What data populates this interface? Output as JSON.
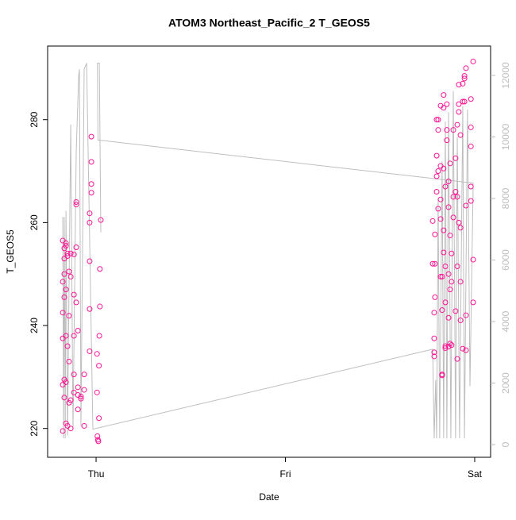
{
  "chart_data": {
    "type": "scatter",
    "title": "ATOM3 Northeast_Pacific_2 T_GEOS5",
    "xlabel": "Date",
    "ylabel": "T_GEOS5",
    "xlim": [
      -0.256,
      2.084
    ],
    "xticks": [
      {
        "value": 0,
        "label": "Thu"
      },
      {
        "value": 1,
        "label": "Fri"
      },
      {
        "value": 2,
        "label": "Sat"
      }
    ],
    "ylim": [
      214.4,
      294.3
    ],
    "yticks": [
      220,
      240,
      260,
      280
    ],
    "y2lim": [
      -413,
      12955
    ],
    "y2ticks": [
      0,
      2000,
      4000,
      6000,
      8000,
      10000,
      12000
    ],
    "series": [
      {
        "type": "line",
        "axis": "y2",
        "color": "#bebebe",
        "x": [
          -0.176,
          -0.172,
          -0.168,
          -0.163,
          -0.159,
          -0.151,
          -0.134,
          -0.122,
          -0.105,
          -0.092,
          -0.088,
          -0.08,
          -0.063,
          -0.05,
          -0.017,
          1.778,
          1.786,
          1.794,
          1.799,
          1.807,
          1.815,
          1.828,
          1.836,
          1.845,
          1.853,
          1.862,
          1.874,
          1.887,
          1.899,
          1.908,
          1.92,
          1.937,
          1.946,
          1.962,
          1.975,
          1.992,
          0.01,
          0.007,
          0.017,
          0.025
        ],
        "values": [
          7400,
          200,
          7400,
          200,
          7600,
          300,
          10400,
          500,
          9500,
          12000,
          12200,
          600,
          12200,
          12400,
          500,
          3100,
          200,
          2100,
          200,
          8000,
          200,
          9200,
          200,
          10500,
          200,
          10800,
          200,
          11500,
          200,
          10000,
          200,
          11000,
          200,
          10900,
          1900,
          8500,
          9900,
          12400,
          12400,
          6900
        ]
      },
      {
        "type": "scatter",
        "color": "#ff1493",
        "x": [
          -0.176,
          -0.176,
          -0.176,
          -0.176,
          -0.176,
          -0.176,
          -0.168,
          -0.168,
          -0.168,
          -0.168,
          -0.168,
          -0.168,
          -0.159,
          -0.159,
          -0.159,
          -0.159,
          -0.159,
          -0.159,
          -0.151,
          -0.151,
          -0.151,
          -0.151,
          -0.143,
          -0.143,
          -0.143,
          -0.143,
          -0.134,
          -0.134,
          -0.134,
          -0.134,
          -0.117,
          -0.117,
          -0.117,
          -0.117,
          -0.117,
          -0.105,
          -0.105,
          -0.105,
          -0.105,
          -0.096,
          -0.096,
          -0.096,
          -0.096,
          -0.08,
          -0.08,
          -0.063,
          -0.063,
          -0.063,
          -0.034,
          -0.034,
          -0.034,
          -0.034,
          -0.034,
          -0.025,
          -0.025,
          -0.025,
          -0.025,
          0.005,
          0.005,
          0.007,
          0.01,
          0.012,
          0.015,
          0.015,
          0.017,
          0.02,
          0.02,
          0.025,
          1.778,
          1.778,
          1.786,
          1.786,
          1.786,
          1.786,
          1.79,
          1.79,
          1.79,
          1.799,
          1.799,
          1.799,
          1.799,
          1.807,
          1.807,
          1.807,
          1.807,
          1.82,
          1.82,
          1.82,
          1.82,
          1.82,
          1.828,
          1.828,
          1.828,
          1.828,
          1.836,
          1.836,
          1.836,
          1.836,
          1.836,
          1.845,
          1.845,
          1.845,
          1.845,
          1.845,
          1.853,
          1.853,
          1.853,
          1.862,
          1.862,
          1.862,
          1.862,
          1.862,
          1.87,
          1.87,
          1.87,
          1.87,
          1.878,
          1.878,
          1.878,
          1.887,
          1.887,
          1.887,
          1.899,
          1.899,
          1.899,
          1.908,
          1.908,
          1.908,
          1.908,
          1.916,
          1.916,
          1.916,
          1.916,
          1.925,
          1.925,
          1.925,
          1.925,
          1.937,
          1.937,
          1.937,
          1.946,
          1.946,
          1.946,
          1.954,
          1.954,
          1.954,
          1.954,
          1.98,
          1.98,
          1.98,
          1.98,
          1.98,
          1.992,
          1.992,
          1.992
        ],
        "values": [
          228.5,
          242.5,
          248.5,
          256.5,
          219.5,
          237.5,
          253,
          255,
          250,
          245.5,
          226,
          229.5,
          238,
          229,
          221,
          247,
          256,
          255.5,
          220.5,
          236,
          253.5,
          254,
          233,
          250.5,
          241.9,
          225,
          220,
          254,
          249.5,
          225.5,
          227,
          230.5,
          238,
          253.8,
          246,
          263.5,
          264,
          255.2,
          244.5,
          223.7,
          228,
          226.5,
          239,
          225.8,
          226.2,
          220.5,
          227.5,
          230.5,
          235,
          243.2,
          252.5,
          260,
          261.8,
          265.8,
          267.5,
          271.8,
          276.7,
          234.5,
          227,
          218.5,
          217.8,
          217.5,
          222,
          232.2,
          238,
          243.7,
          251,
          260.5,
          252,
          260.3,
          242.5,
          234,
          234.8,
          237.5,
          252,
          245.5,
          257.7,
          266,
          273,
          280,
          269,
          278,
          280,
          270,
          262.7,
          249.5,
          260.7,
          264.5,
          271,
          282.7,
          243,
          249.5,
          230.5,
          230.3,
          254.2,
          270.5,
          282.3,
          284.8,
          258.5,
          267,
          251.5,
          244.5,
          236,
          235.6,
          276,
          283,
          278,
          268,
          263,
          250,
          241.5,
          235.9,
          236.5,
          247,
          257.5,
          271.5,
          236.2,
          248.5,
          254,
          261,
          265,
          278,
          242.8,
          272.5,
          266,
          233.5,
          251.5,
          265,
          279,
          260,
          281.5,
          283,
          286.8,
          241,
          248.5,
          259,
          277,
          235.5,
          287,
          283.5,
          288.5,
          288,
          283.5,
          235.2,
          242,
          263.3,
          290,
          267,
          278.5,
          274.8,
          284,
          264.2,
          252.8,
          244.5,
          291.3
        ]
      }
    ]
  }
}
